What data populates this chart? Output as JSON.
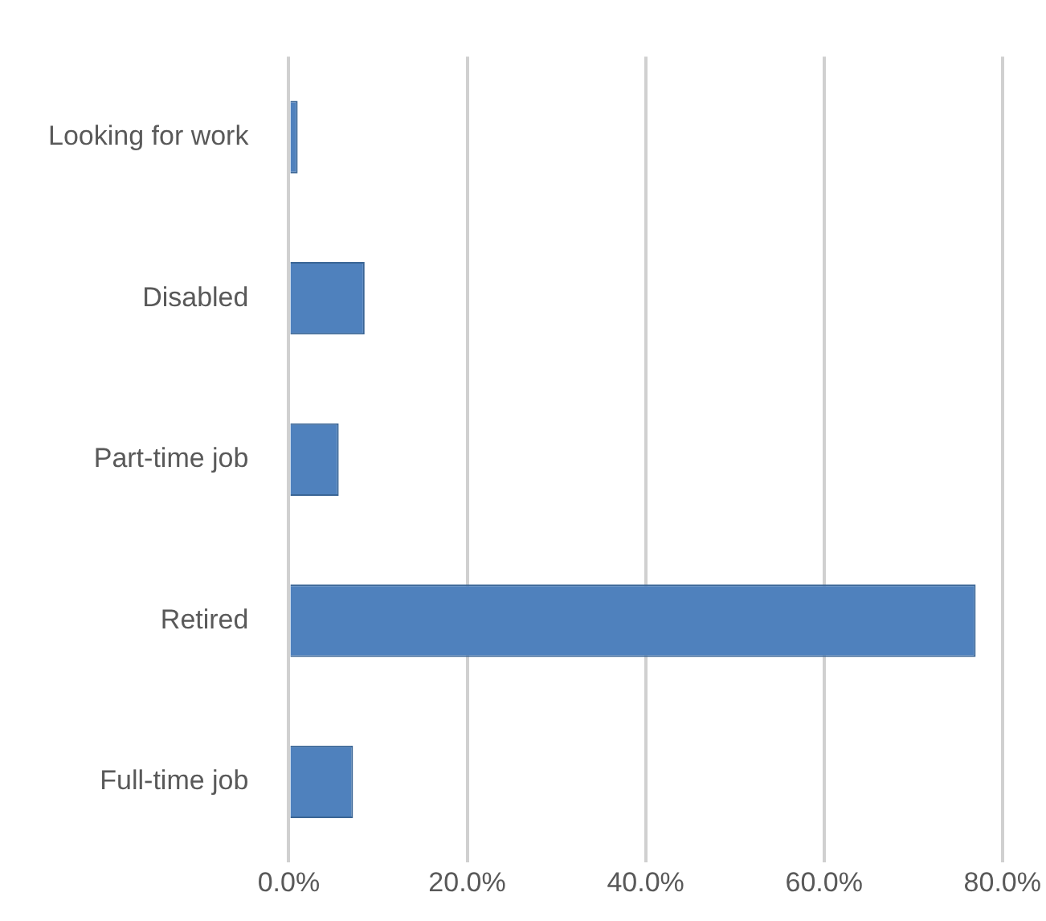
{
  "chart_data": {
    "type": "bar",
    "orientation": "horizontal",
    "categories": [
      "Looking for work",
      "Disabled",
      "Part-time job",
      "Retired",
      "Full-time job"
    ],
    "values": [
      1,
      8.5,
      5.6,
      77,
      7.2
    ],
    "color": "#4f81bd",
    "xlim": [
      0,
      80
    ],
    "xticks": [
      {
        "value": 0,
        "label": "0.0%"
      },
      {
        "value": 20,
        "label": "20.0%"
      },
      {
        "value": 40,
        "label": "40.0%"
      },
      {
        "value": 60,
        "label": "60.0%"
      },
      {
        "value": 80,
        "label": "80.0%"
      }
    ],
    "grid": "x",
    "legend": false
  }
}
